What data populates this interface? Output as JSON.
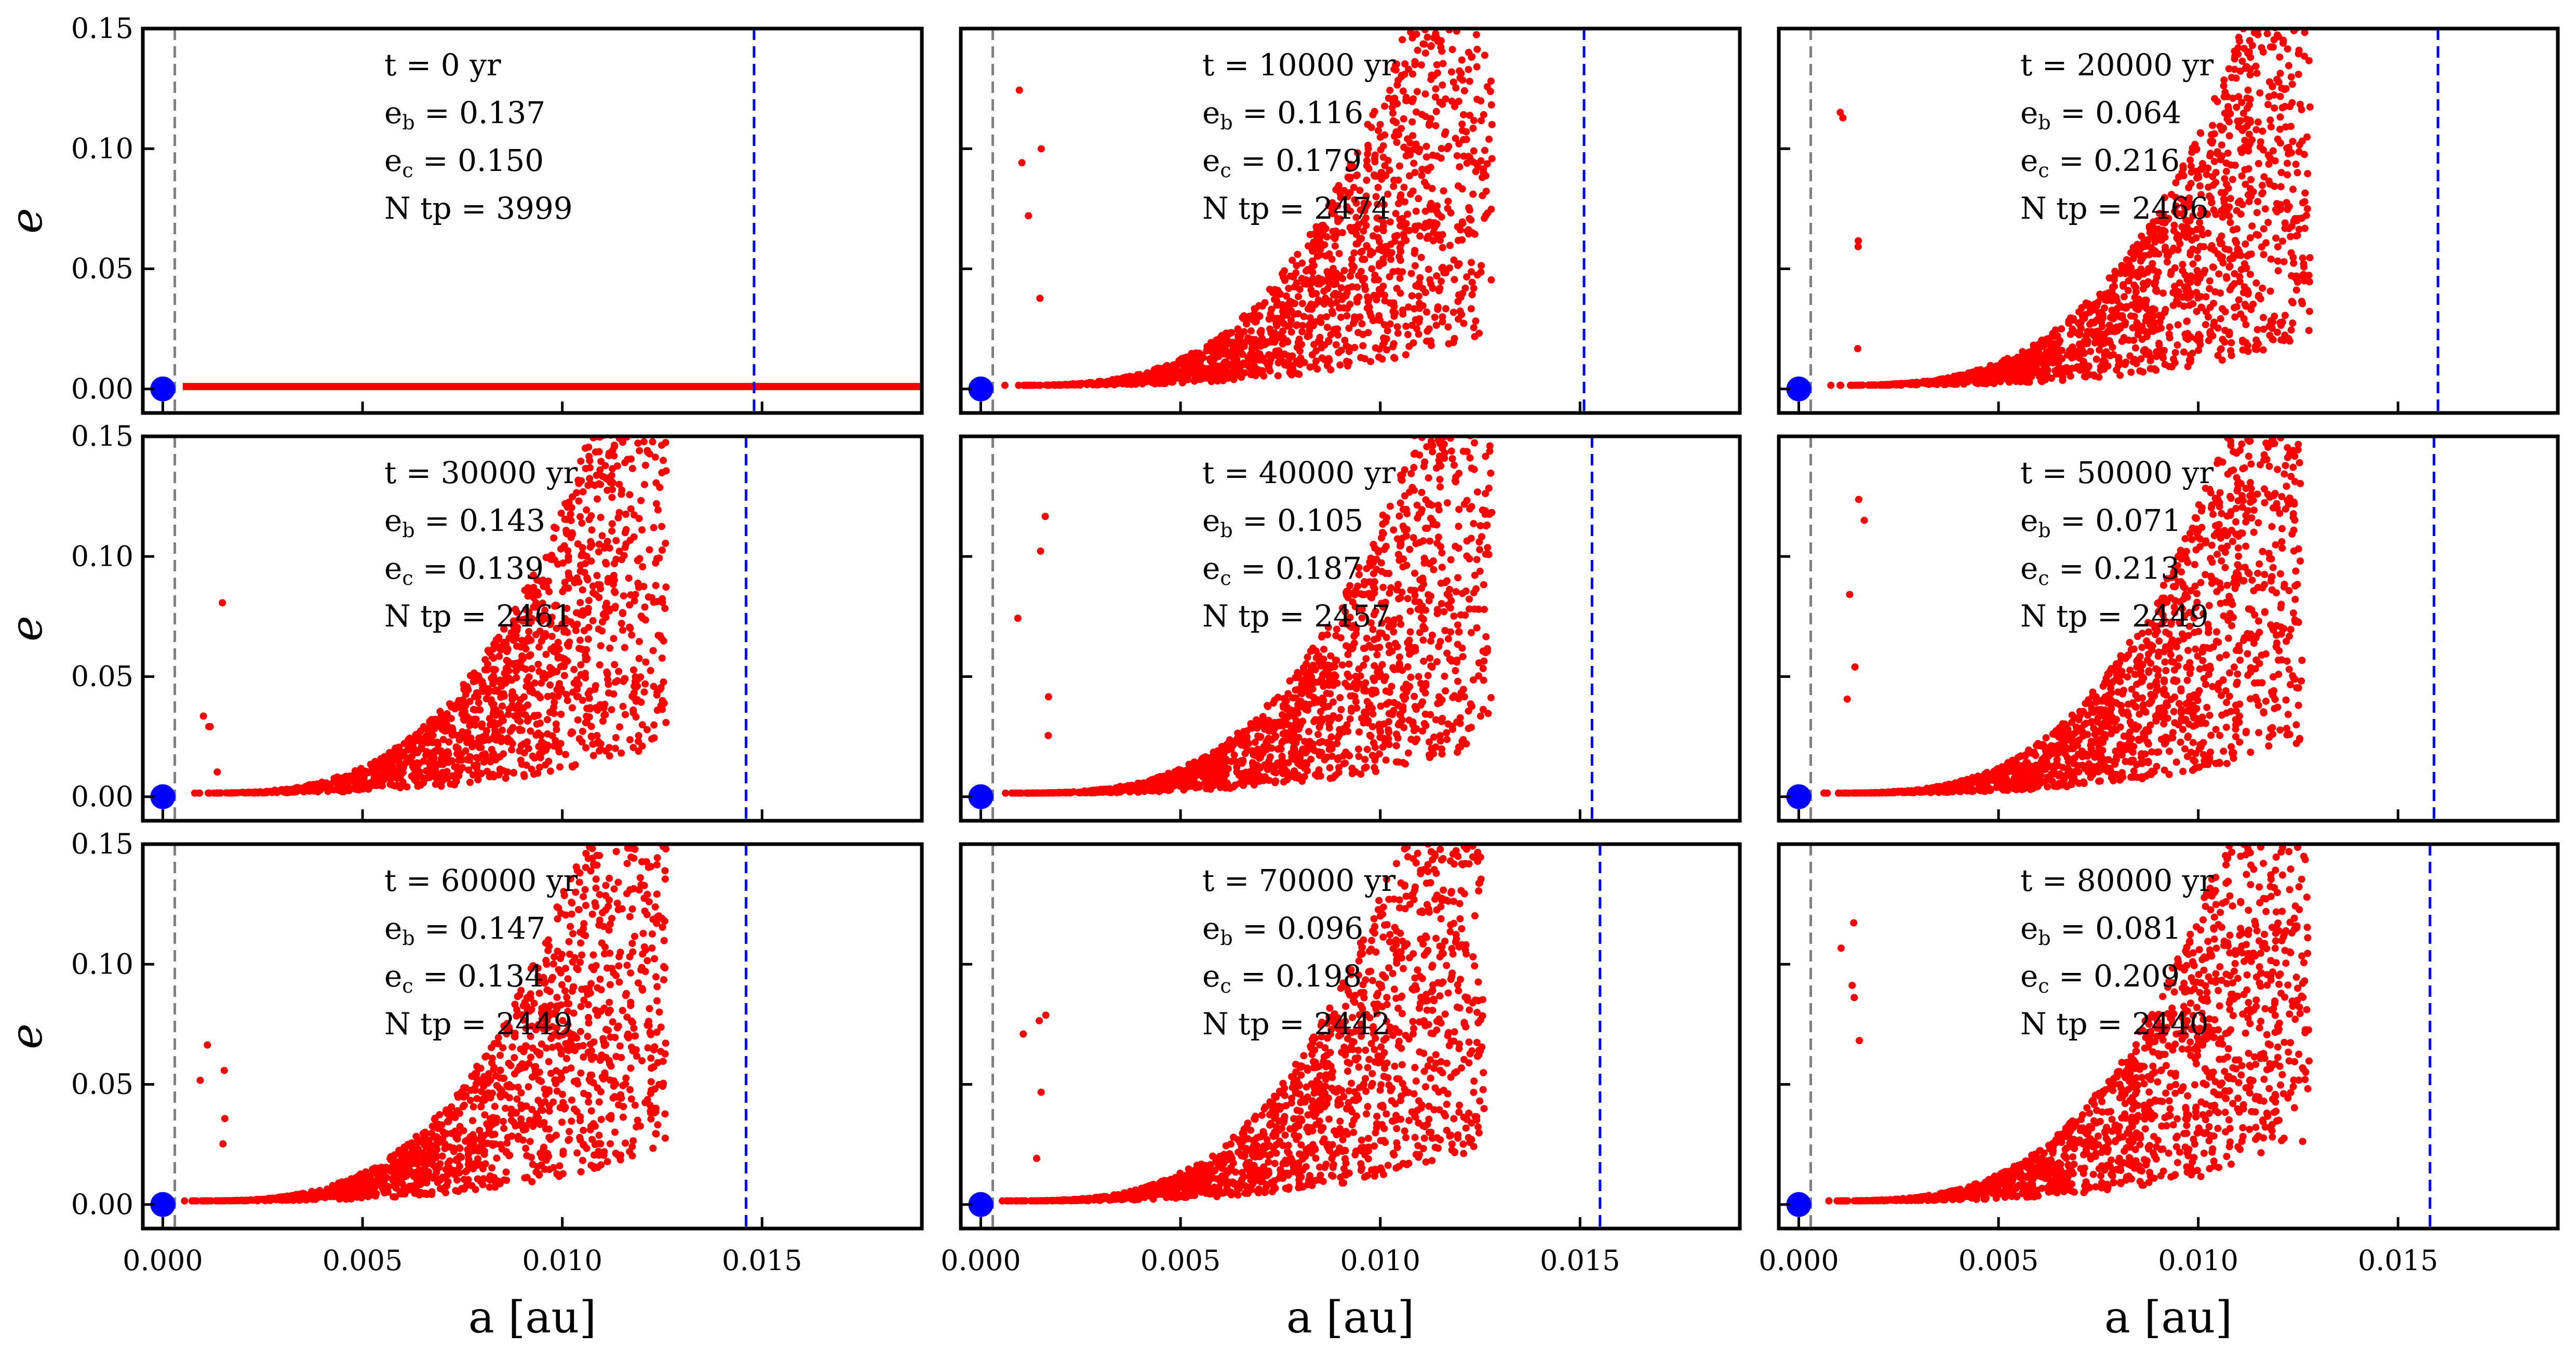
{
  "figure": {
    "xlabel": "a [au]",
    "ylabel": "e",
    "xticks": [
      0.0,
      0.005,
      0.01,
      0.015
    ],
    "xtick_labels": [
      "0.000",
      "0.005",
      "0.010",
      "0.015"
    ],
    "yticks": [
      0.0,
      0.05,
      0.1,
      0.15
    ],
    "ytick_labels": [
      "0.00",
      "0.05",
      "0.10",
      "0.15"
    ],
    "xlim": [
      -0.0005,
      0.019
    ],
    "ylim": [
      -0.01,
      0.15
    ],
    "colors": {
      "particles": "#ff0000",
      "planet": "#0000ff",
      "inner_line": "#808080",
      "outer_line": "#0000ff"
    }
  },
  "chart_data": [
    {
      "type": "scatter",
      "title": "t = 0 yr",
      "t_label": "t = 0 yr",
      "eb_label": "e",
      "eb_sub": "b",
      "eb_value": " = 0.137",
      "ec_label": "e",
      "ec_sub": "c",
      "ec_value": " = 0.150",
      "ntp_label": "N tp = 3999",
      "t_yr": 0,
      "e_b": 0.137,
      "e_c": 0.15,
      "n_tp": 3999,
      "inner_line_a": 0.0003,
      "outer_line_a": 0.0148,
      "planet": {
        "a": 0.0,
        "e": 0.0
      },
      "particles": {
        "a_min": 0.0005,
        "a_max": 0.019,
        "e_scale": 0.0,
        "spread": 0.0,
        "initial": true
      }
    },
    {
      "type": "scatter",
      "title": "t = 10000 yr",
      "t_label": "t = 10000 yr",
      "eb_label": "e",
      "eb_sub": "b",
      "eb_value": " = 0.116",
      "ec_label": "e",
      "ec_sub": "c",
      "ec_value": " = 0.179",
      "ntp_label": "N tp = 2474",
      "t_yr": 10000,
      "e_b": 0.116,
      "e_c": 0.179,
      "n_tp": 2474,
      "inner_line_a": 0.0003,
      "outer_line_a": 0.0151,
      "planet": {
        "a": 0.0,
        "e": 0.0
      },
      "particles": {
        "a_min": 0.0005,
        "a_max": 0.0128,
        "e_scale": 0.15,
        "spread": 0.9,
        "initial": false
      }
    },
    {
      "type": "scatter",
      "title": "t = 20000 yr",
      "t_label": "t = 20000 yr",
      "eb_label": "e",
      "eb_sub": "b",
      "eb_value": " = 0.064",
      "ec_label": "e",
      "ec_sub": "c",
      "ec_value": " = 0.216",
      "ntp_label": "N tp = 2466",
      "t_yr": 20000,
      "e_b": 0.064,
      "e_c": 0.216,
      "n_tp": 2466,
      "inner_line_a": 0.0003,
      "outer_line_a": 0.016,
      "planet": {
        "a": 0.0,
        "e": 0.0
      },
      "particles": {
        "a_min": 0.0005,
        "a_max": 0.0128,
        "e_scale": 0.13,
        "spread": 0.9,
        "initial": false
      }
    },
    {
      "type": "scatter",
      "title": "t = 30000 yr",
      "t_label": "t = 30000 yr",
      "eb_label": "e",
      "eb_sub": "b",
      "eb_value": " = 0.143",
      "ec_label": "e",
      "ec_sub": "c",
      "ec_value": " = 0.139",
      "ntp_label": "N tp = 2461",
      "t_yr": 30000,
      "e_b": 0.143,
      "e_c": 0.139,
      "n_tp": 2461,
      "inner_line_a": 0.0003,
      "outer_line_a": 0.0146,
      "planet": {
        "a": 0.0,
        "e": 0.0
      },
      "particles": {
        "a_min": 0.0005,
        "a_max": 0.0126,
        "e_scale": 0.14,
        "spread": 0.9,
        "initial": false
      }
    },
    {
      "type": "scatter",
      "title": "t = 40000 yr",
      "t_label": "t = 40000 yr",
      "eb_label": "e",
      "eb_sub": "b",
      "eb_value": " = 0.105",
      "ec_label": "e",
      "ec_sub": "c",
      "ec_value": " = 0.187",
      "ntp_label": "N tp = 2457",
      "t_yr": 40000,
      "e_b": 0.105,
      "e_c": 0.187,
      "n_tp": 2457,
      "inner_line_a": 0.0003,
      "outer_line_a": 0.0153,
      "planet": {
        "a": 0.0,
        "e": 0.0
      },
      "particles": {
        "a_min": 0.0005,
        "a_max": 0.0128,
        "e_scale": 0.14,
        "spread": 0.9,
        "initial": false
      }
    },
    {
      "type": "scatter",
      "title": "t = 50000 yr",
      "t_label": "t = 50000 yr",
      "eb_label": "e",
      "eb_sub": "b",
      "eb_value": " = 0.071",
      "ec_label": "e",
      "ec_sub": "c",
      "ec_value": " = 0.213",
      "ntp_label": "N tp = 2449",
      "t_yr": 50000,
      "e_b": 0.071,
      "e_c": 0.213,
      "n_tp": 2449,
      "inner_line_a": 0.0003,
      "outer_line_a": 0.0159,
      "planet": {
        "a": 0.0,
        "e": 0.0
      },
      "particles": {
        "a_min": 0.0005,
        "a_max": 0.0126,
        "e_scale": 0.14,
        "spread": 0.9,
        "initial": false
      }
    },
    {
      "type": "scatter",
      "title": "t = 60000 yr",
      "t_label": "t = 60000 yr",
      "eb_label": "e",
      "eb_sub": "b",
      "eb_value": " = 0.147",
      "ec_label": "e",
      "ec_sub": "c",
      "ec_value": " = 0.134",
      "ntp_label": "N tp = 2449",
      "t_yr": 60000,
      "e_b": 0.147,
      "e_c": 0.134,
      "n_tp": 2449,
      "inner_line_a": 0.0003,
      "outer_line_a": 0.0146,
      "planet": {
        "a": 0.0,
        "e": 0.0
      },
      "particles": {
        "a_min": 0.0005,
        "a_max": 0.0126,
        "e_scale": 0.15,
        "spread": 0.9,
        "initial": false
      }
    },
    {
      "type": "scatter",
      "title": "t = 70000 yr",
      "t_label": "t = 70000 yr",
      "eb_label": "e",
      "eb_sub": "b",
      "eb_value": " = 0.096",
      "ec_label": "e",
      "ec_sub": "c",
      "ec_value": " = 0.198",
      "ntp_label": "N tp = 2442",
      "t_yr": 70000,
      "e_b": 0.096,
      "e_c": 0.198,
      "n_tp": 2442,
      "inner_line_a": 0.0003,
      "outer_line_a": 0.0155,
      "planet": {
        "a": 0.0,
        "e": 0.0
      },
      "particles": {
        "a_min": 0.0005,
        "a_max": 0.0126,
        "e_scale": 0.15,
        "spread": 0.9,
        "initial": false
      }
    },
    {
      "type": "scatter",
      "title": "t = 80000 yr",
      "t_label": "t = 80000 yr",
      "eb_label": "e",
      "eb_sub": "b",
      "eb_value": " = 0.081",
      "ec_label": "e",
      "ec_sub": "c",
      "ec_value": " = 0.209",
      "ntp_label": "N tp = 2440",
      "t_yr": 80000,
      "e_b": 0.081,
      "e_c": 0.209,
      "n_tp": 2440,
      "inner_line_a": 0.0003,
      "outer_line_a": 0.0158,
      "planet": {
        "a": 0.0,
        "e": 0.0
      },
      "particles": {
        "a_min": 0.0005,
        "a_max": 0.0128,
        "e_scale": 0.15,
        "spread": 0.9,
        "initial": false
      }
    }
  ]
}
